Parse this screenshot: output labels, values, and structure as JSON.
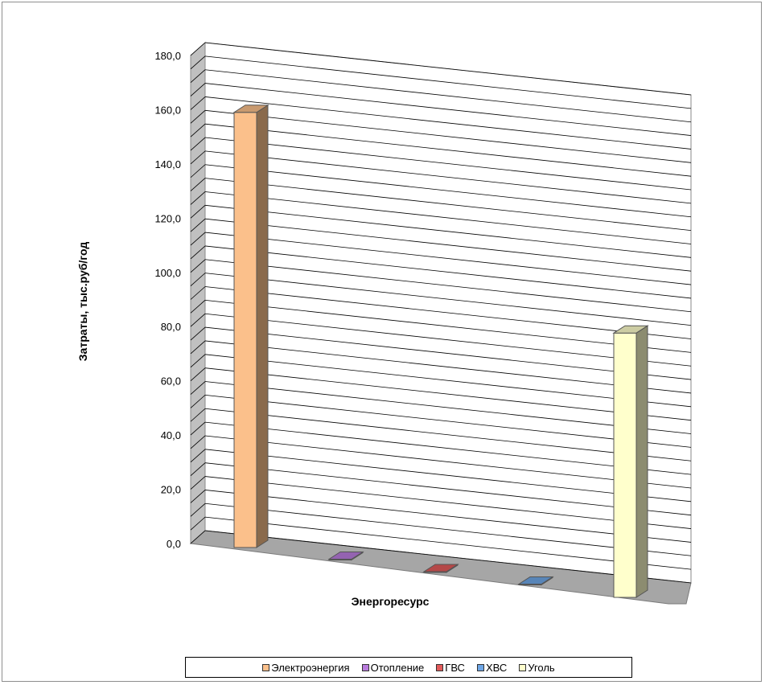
{
  "chart_data": {
    "type": "bar",
    "title": "",
    "xlabel": "Энергоресурс",
    "ylabel": "Затраты, тыс.руб/год",
    "ylim": [
      0,
      180
    ],
    "y_ticks": [
      "0,0",
      "20,0",
      "40,0",
      "60,0",
      "80,0",
      "100,0",
      "120,0",
      "140,0",
      "160,0",
      "180,0"
    ],
    "grid": true,
    "legend_position": "bottom",
    "three_d": true,
    "categories": [
      "Электроэнергия",
      "Отопление",
      "ГВС",
      "ХВС",
      "Уголь"
    ],
    "values": [
      160.5,
      0.3,
      0.3,
      0.3,
      97.5
    ],
    "colors": {
      "Электроэнергия": "#fbc08b",
      "Отопление": "#b97cdd",
      "ГВС": "#e25a5a",
      "ХВС": "#6ea6e6",
      "Уголь": "#ffffcc"
    }
  }
}
